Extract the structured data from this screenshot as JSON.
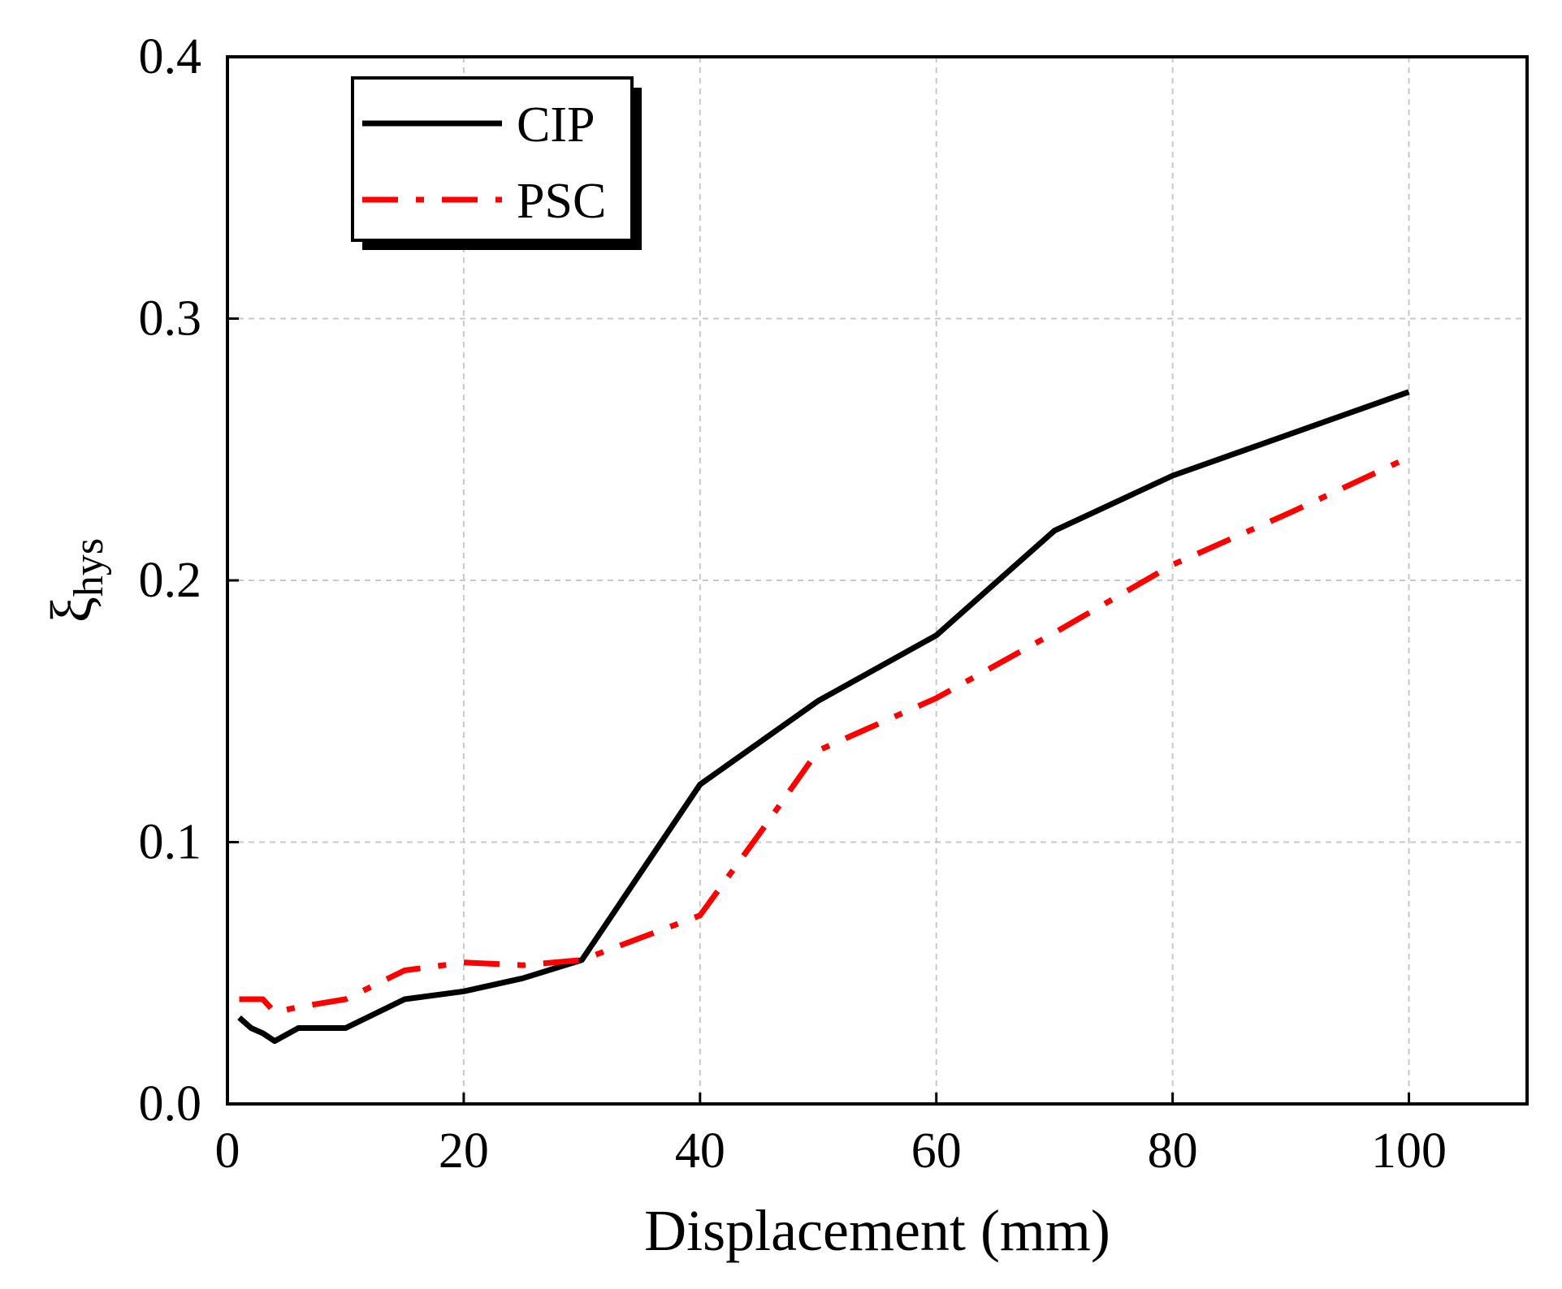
{
  "chart_data": {
    "type": "line",
    "title": "",
    "xlabel": "Displacement (mm)",
    "ylabel": "ξ",
    "ylabel_subscript": "hys",
    "xlim": [
      0,
      110
    ],
    "ylim": [
      0,
      0.4
    ],
    "xticks": [
      0,
      20,
      40,
      60,
      80,
      100
    ],
    "xtick_labels": [
      "0",
      "20",
      "40",
      "60",
      "80",
      "100"
    ],
    "yticks": [
      0,
      0.1,
      0.2,
      0.3,
      0.4
    ],
    "ytick_labels": [
      "0.0",
      "0.1",
      "0.2",
      "0.3",
      "0.4"
    ],
    "grid": true,
    "legend_position": "top-left",
    "series": [
      {
        "name": "CIP",
        "color": "#000000",
        "style": "solid",
        "x": [
          1,
          2,
          3,
          4,
          6,
          10,
          15,
          20,
          25,
          30,
          40,
          50,
          60,
          70,
          80,
          90,
          100
        ],
        "y": [
          0.033,
          0.029,
          0.027,
          0.024,
          0.029,
          0.029,
          0.04,
          0.043,
          0.048,
          0.055,
          0.122,
          0.154,
          0.179,
          0.219,
          0.24,
          0.256,
          0.272
        ]
      },
      {
        "name": "PSC",
        "color": "#ff0000",
        "style": "dashdot",
        "x": [
          1,
          2,
          3,
          4,
          6,
          10,
          15,
          20,
          25,
          30,
          40,
          45,
          50,
          60,
          70,
          80,
          90,
          100
        ],
        "y": [
          0.04,
          0.04,
          0.04,
          0.035,
          0.037,
          0.04,
          0.051,
          0.054,
          0.053,
          0.055,
          0.072,
          0.103,
          0.135,
          0.155,
          0.18,
          0.206,
          0.226,
          0.247
        ]
      }
    ]
  }
}
